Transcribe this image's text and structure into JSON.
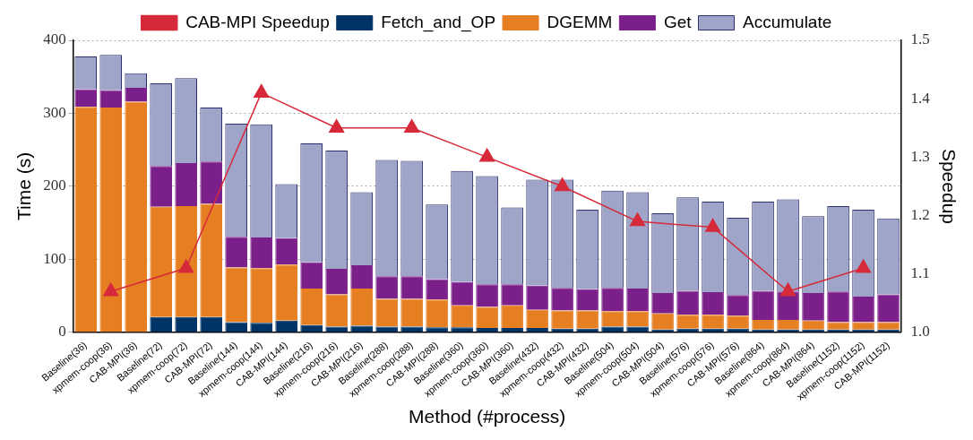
{
  "chart_data": {
    "type": "bar",
    "xlabel": "Method (#process)",
    "ylabel": "Time (s)",
    "y2label": "Speedup",
    "categories": [
      "Baseline(36)",
      "xpmem-coop(36)",
      "CAB-MPI(36)",
      "Baseline(72)",
      "xpmem-coop(72)",
      "CAB-MPI(72)",
      "Baseline(144)",
      "xpmem-coop(144)",
      "CAB-MPI(144)",
      "Baseline(216)",
      "xpmem-coop(216)",
      "CAB-MPI(216)",
      "Baseline(288)",
      "xpmem-coop(288)",
      "CAB-MPI(288)",
      "Baseline(360)",
      "xpmem-coop(360)",
      "CAB-MPI(360)",
      "Baseline(432)",
      "xpmem-coop(432)",
      "CAB-MPI(432)",
      "Baseline(504)",
      "xpmem-coop(504)",
      "CAB-MPI(504)",
      "Baseline(576)",
      "xpmem-coop(576)",
      "CAB-MPI(576)",
      "Baseline(864)",
      "xpmem-coop(864)",
      "CAB-MPI(864)",
      "Baseline(1152)",
      "xpmem-coop(1152)",
      "CAB-MPI(1152)"
    ],
    "stacked": true,
    "legend": "top",
    "grid": "y",
    "marker": "triangle",
    "ylim": [
      0,
      400
    ],
    "yticks": [
      0,
      100,
      200,
      300,
      400
    ],
    "y2lim": [
      1.0,
      1.5
    ],
    "y2ticks": [
      {
        "value": 1.0,
        "label": "1.0"
      },
      1.1,
      1.2,
      1.3,
      1.4,
      1.5
    ],
    "series": [
      {
        "name": "Fetch_and_OP",
        "color": "#003366",
        "values": [
          0,
          0,
          0,
          21,
          21,
          21,
          14,
          13,
          16,
          10,
          8,
          9,
          8,
          8,
          7,
          7,
          6,
          6,
          6,
          5,
          5,
          8,
          8,
          4,
          5,
          5,
          5,
          4,
          4,
          4,
          4,
          4,
          4
        ]
      },
      {
        "name": "DGEMM",
        "color": "#e67e22",
        "values": [
          309,
          308,
          316,
          151,
          152,
          155,
          75,
          75,
          77,
          50,
          44,
          51,
          38,
          38,
          38,
          30,
          29,
          31,
          25,
          25,
          25,
          21,
          21,
          22,
          19,
          19,
          18,
          13,
          13,
          12,
          10,
          10,
          10
        ]
      },
      {
        "name": "Get",
        "color": "#7b1f8a",
        "values": [
          24,
          24,
          19,
          56,
          59,
          58,
          42,
          42,
          36,
          36,
          35,
          32,
          31,
          31,
          28,
          32,
          31,
          29,
          33,
          31,
          29,
          32,
          31,
          28,
          33,
          31,
          28,
          40,
          39,
          38,
          42,
          35,
          38
        ]
      },
      {
        "name": "Accumulate",
        "color": "#9fa5c9",
        "values": [
          45,
          48,
          20,
          113,
          116,
          74,
          155,
          155,
          74,
          163,
          162,
          100,
          159,
          158,
          102,
          152,
          148,
          105,
          145,
          148,
          109,
          133,
          132,
          109,
          128,
          124,
          106,
          122,
          126,
          105,
          117,
          119,
          104
        ]
      },
      {
        "name": "CAB-MPI Speedup",
        "type": "line",
        "axis": "y2",
        "color": "#d62a3a",
        "values": [
          null,
          1.07,
          null,
          null,
          1.11,
          null,
          null,
          1.41,
          null,
          null,
          1.35,
          null,
          null,
          1.35,
          null,
          null,
          1.3,
          null,
          null,
          1.25,
          null,
          null,
          1.19,
          null,
          null,
          1.18,
          null,
          null,
          1.07,
          null,
          null,
          1.11,
          null
        ]
      }
    ]
  }
}
